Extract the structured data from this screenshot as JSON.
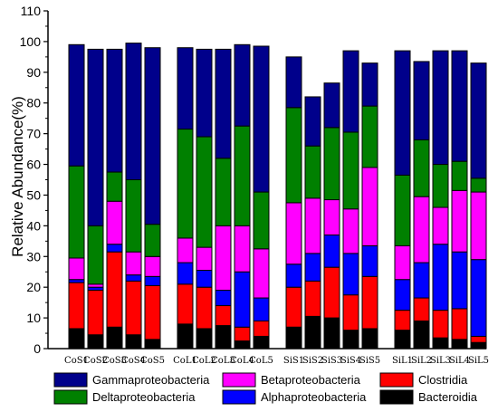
{
  "chart_data": {
    "type": "bar",
    "stacked": true,
    "ylabel": "Relative Abundance(%)",
    "xlabel": "",
    "ylim": [
      0,
      110
    ],
    "yticks": [
      0,
      10,
      20,
      30,
      40,
      50,
      60,
      70,
      80,
      90,
      100,
      110
    ],
    "groups": [
      [
        "CoS1",
        "CoS2",
        "CoS3",
        "CoS4",
        "CoS5"
      ],
      [
        "CoL1",
        "CoL2",
        "CoL3",
        "CoL4",
        "CoL5"
      ],
      [
        "SiS1",
        "SiS2",
        "SiS3",
        "SiS4",
        "SiS5"
      ],
      [
        "SiL1",
        "SiL2",
        "SiL3",
        "SiL4",
        "SiL5"
      ]
    ],
    "categories": [
      "CoS1",
      "CoS2",
      "CoS3",
      "CoS4",
      "CoS5",
      "CoL1",
      "CoL2",
      "CoL3",
      "CoL4",
      "CoL5",
      "SiS1",
      "SiS2",
      "SiS3",
      "SiS4",
      "SiS5",
      "SiL1",
      "SiL2",
      "SiL3",
      "SiL4",
      "SiL5"
    ],
    "series": [
      {
        "name": "Bacteroidia",
        "color": "#000000",
        "values": [
          6.5,
          4.5,
          7,
          4.5,
          3,
          8,
          6.5,
          7.5,
          2.5,
          4,
          7,
          10.5,
          10,
          6,
          6.5,
          6,
          9,
          3.5,
          3,
          2
        ]
      },
      {
        "name": "Clostridia",
        "color": "#ff0000",
        "values": [
          15,
          14.5,
          24.5,
          17.5,
          17.5,
          13,
          13.5,
          6.5,
          4.5,
          5,
          13,
          11.5,
          16.5,
          11.5,
          17,
          6.5,
          7.5,
          9,
          10,
          2
        ]
      },
      {
        "name": "Alphaproteobacteria",
        "color": "#0000ff",
        "values": [
          1,
          1,
          2.5,
          2,
          3,
          7,
          5.5,
          5,
          18,
          7.5,
          7.5,
          9,
          10.5,
          13.5,
          10,
          10,
          11.5,
          21.5,
          18.5,
          25
        ]
      },
      {
        "name": "Betaproteobacteria",
        "color": "#ff00ff",
        "values": [
          7,
          1,
          14,
          7.5,
          6.5,
          8,
          7.5,
          21,
          15,
          16,
          20,
          18,
          11.5,
          14.5,
          25.5,
          11,
          21.5,
          12,
          20,
          22
        ]
      },
      {
        "name": "Deltaproteobacteria",
        "color": "#008000",
        "values": [
          30,
          19,
          9.5,
          23.5,
          10.5,
          35.5,
          36,
          22,
          32.5,
          18.5,
          31,
          17,
          23.5,
          25,
          20,
          23,
          18.5,
          14,
          9.5,
          4.5
        ]
      },
      {
        "name": "Gammaproteobacteria",
        "color": "#00008b",
        "values": [
          39.5,
          57.5,
          40,
          44.5,
          57.5,
          26.5,
          28.5,
          35.5,
          26.5,
          47.5,
          16.5,
          16,
          14.5,
          26.5,
          14,
          40.5,
          25.5,
          37,
          36,
          37.5
        ]
      }
    ],
    "legend": {
      "placement": "bottom",
      "order": [
        "Gammaproteobacteria",
        "Deltaproteobacteria",
        "Betaproteobacteria",
        "Alphaproteobacteria",
        "Clostridia",
        "Bacteroidia"
      ]
    }
  }
}
